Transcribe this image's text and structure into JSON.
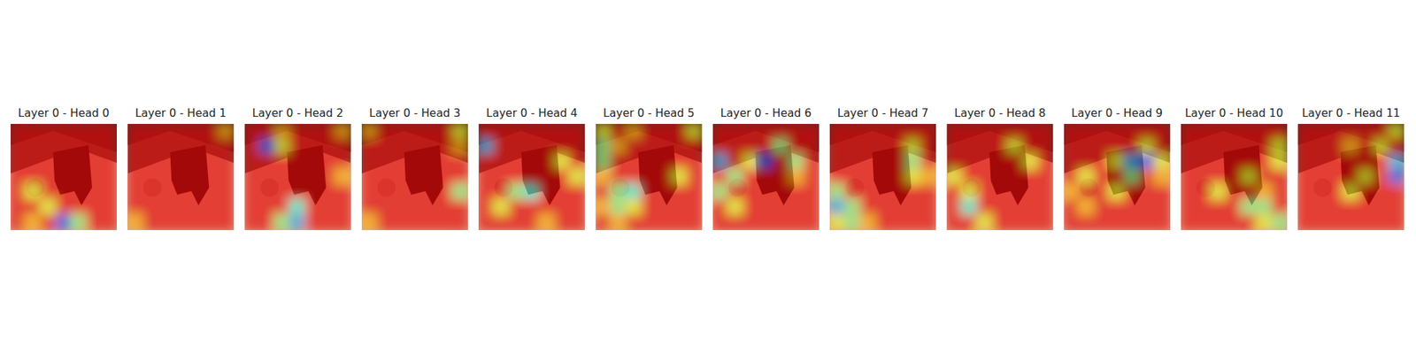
{
  "chart_data": [
    {
      "type": "heatmap",
      "title": "Layer 0 - Head 0",
      "zlim": [
        0,
        1
      ],
      "tick_labels": false,
      "z": [
        [
          0.9,
          0.9,
          0.9,
          0.9,
          0.9,
          0.9,
          0.9
        ],
        [
          0.9,
          0.9,
          0.9,
          0.9,
          0.9,
          0.9,
          0.9
        ],
        [
          0.9,
          0.9,
          0.9,
          0.9,
          0.9,
          0.9,
          0.9
        ],
        [
          0.9,
          0.9,
          0.9,
          0.9,
          0.9,
          0.9,
          0.9
        ],
        [
          0.9,
          0.6,
          0.9,
          0.9,
          0.9,
          0.9,
          0.9
        ],
        [
          0.9,
          0.9,
          0.6,
          0.9,
          0.9,
          0.9,
          0.9
        ],
        [
          0.9,
          0.7,
          0.9,
          0.2,
          0.5,
          0.9,
          0.9
        ]
      ]
    },
    {
      "type": "heatmap",
      "title": "Layer 0 - Head 1",
      "zlim": [
        0,
        1
      ],
      "tick_labels": false,
      "z": [
        [
          0.9,
          0.9,
          0.9,
          0.9,
          0.9,
          0.9,
          0.7
        ],
        [
          0.9,
          0.9,
          0.9,
          0.9,
          0.9,
          0.9,
          0.9
        ],
        [
          0.9,
          0.9,
          0.9,
          0.9,
          0.9,
          0.9,
          0.9
        ],
        [
          0.9,
          0.9,
          0.9,
          0.9,
          0.9,
          0.9,
          0.9
        ],
        [
          0.9,
          0.9,
          0.9,
          0.9,
          0.9,
          0.9,
          0.9
        ],
        [
          0.9,
          0.9,
          0.9,
          0.9,
          0.9,
          0.9,
          0.9
        ],
        [
          0.7,
          0.9,
          0.9,
          0.9,
          0.9,
          0.9,
          0.9
        ]
      ]
    },
    {
      "type": "heatmap",
      "title": "Layer 0 - Head 2",
      "zlim": [
        0,
        1
      ],
      "tick_labels": false,
      "z": [
        [
          0.9,
          0.9,
          0.7,
          0.9,
          0.9,
          0.9,
          0.7
        ],
        [
          0.9,
          0.2,
          0.6,
          0.9,
          0.9,
          0.9,
          0.9
        ],
        [
          0.9,
          0.9,
          0.9,
          0.9,
          0.9,
          0.9,
          0.9
        ],
        [
          0.9,
          0.9,
          0.9,
          0.9,
          0.9,
          0.9,
          0.7
        ],
        [
          0.9,
          0.9,
          0.9,
          0.9,
          0.9,
          0.9,
          0.9
        ],
        [
          0.9,
          0.9,
          0.9,
          0.4,
          0.9,
          0.9,
          0.9
        ],
        [
          0.9,
          0.9,
          0.5,
          0.3,
          0.9,
          0.9,
          0.9
        ]
      ]
    },
    {
      "type": "heatmap",
      "title": "Layer 0 - Head 3",
      "zlim": [
        0,
        1
      ],
      "tick_labels": false,
      "z": [
        [
          0.7,
          0.9,
          0.9,
          0.9,
          0.9,
          0.9,
          0.6
        ],
        [
          0.9,
          0.9,
          0.9,
          0.9,
          0.9,
          0.9,
          0.7
        ],
        [
          0.9,
          0.9,
          0.9,
          0.9,
          0.9,
          0.9,
          0.9
        ],
        [
          0.9,
          0.9,
          0.9,
          0.9,
          0.9,
          0.9,
          0.9
        ],
        [
          0.9,
          0.9,
          0.9,
          0.9,
          0.9,
          0.9,
          0.5
        ],
        [
          0.9,
          0.9,
          0.9,
          0.9,
          0.9,
          0.9,
          0.9
        ],
        [
          0.7,
          0.9,
          0.9,
          0.9,
          0.9,
          0.9,
          0.9
        ]
      ]
    },
    {
      "type": "heatmap",
      "title": "Layer 0 - Head 4",
      "zlim": [
        0,
        1
      ],
      "tick_labels": false,
      "z": [
        [
          0.9,
          0.9,
          0.9,
          0.9,
          0.9,
          0.9,
          0.9
        ],
        [
          0.3,
          0.9,
          0.9,
          0.9,
          0.9,
          0.9,
          0.9
        ],
        [
          0.9,
          0.9,
          0.9,
          0.9,
          0.9,
          0.6,
          0.9
        ],
        [
          0.9,
          0.9,
          0.9,
          0.9,
          0.9,
          0.9,
          0.6
        ],
        [
          0.9,
          0.9,
          0.5,
          0.4,
          0.9,
          0.9,
          0.9
        ],
        [
          0.9,
          0.6,
          0.9,
          0.9,
          0.9,
          0.9,
          0.9
        ],
        [
          0.9,
          0.9,
          0.9,
          0.9,
          0.7,
          0.9,
          0.9
        ]
      ]
    },
    {
      "type": "heatmap",
      "title": "Layer 0 - Head 5",
      "zlim": [
        0,
        1
      ],
      "tick_labels": false,
      "z": [
        [
          0.6,
          0.9,
          0.7,
          0.9,
          0.9,
          0.9,
          0.6
        ],
        [
          0.5,
          0.7,
          0.9,
          0.9,
          0.9,
          0.9,
          0.9
        ],
        [
          0.5,
          0.9,
          0.9,
          0.9,
          0.9,
          0.9,
          0.9
        ],
        [
          0.7,
          0.9,
          0.9,
          0.9,
          0.9,
          0.6,
          0.9
        ],
        [
          0.9,
          0.5,
          0.4,
          0.9,
          0.9,
          0.9,
          0.9
        ],
        [
          0.7,
          0.5,
          0.6,
          0.9,
          0.9,
          0.9,
          0.9
        ],
        [
          0.9,
          0.7,
          0.9,
          0.9,
          0.9,
          0.9,
          0.9
        ]
      ]
    },
    {
      "type": "heatmap",
      "title": "Layer 0 - Head 6",
      "zlim": [
        0,
        1
      ],
      "tick_labels": false,
      "z": [
        [
          0.9,
          0.9,
          0.9,
          0.9,
          0.9,
          0.9,
          0.9
        ],
        [
          0.9,
          0.9,
          0.9,
          0.9,
          0.5,
          0.9,
          0.9
        ],
        [
          0.3,
          0.9,
          0.6,
          0.2,
          0.9,
          0.5,
          0.9
        ],
        [
          0.9,
          0.5,
          0.9,
          0.9,
          0.9,
          0.7,
          0.9
        ],
        [
          0.5,
          0.9,
          0.9,
          0.9,
          0.9,
          0.9,
          0.9
        ],
        [
          0.9,
          0.6,
          0.9,
          0.9,
          0.9,
          0.9,
          0.9
        ],
        [
          0.9,
          0.9,
          0.9,
          0.9,
          0.9,
          0.9,
          0.9
        ]
      ]
    },
    {
      "type": "heatmap",
      "title": "Layer 0 - Head 7",
      "zlim": [
        0,
        1
      ],
      "tick_labels": false,
      "z": [
        [
          0.9,
          0.9,
          0.9,
          0.9,
          0.9,
          0.9,
          0.9
        ],
        [
          0.9,
          0.9,
          0.9,
          0.9,
          0.9,
          0.6,
          0.9
        ],
        [
          0.9,
          0.9,
          0.9,
          0.9,
          0.9,
          0.5,
          0.9
        ],
        [
          0.9,
          0.9,
          0.9,
          0.9,
          0.9,
          0.6,
          0.7
        ],
        [
          0.5,
          0.9,
          0.9,
          0.9,
          0.9,
          0.9,
          0.9
        ],
        [
          0.3,
          0.5,
          0.9,
          0.9,
          0.9,
          0.9,
          0.9
        ],
        [
          0.6,
          0.5,
          0.7,
          0.9,
          0.9,
          0.9,
          0.9
        ]
      ]
    },
    {
      "type": "heatmap",
      "title": "Layer 0 - Head 8",
      "zlim": [
        0,
        1
      ],
      "tick_labels": false,
      "z": [
        [
          0.9,
          0.9,
          0.9,
          0.9,
          0.9,
          0.9,
          0.9
        ],
        [
          0.9,
          0.9,
          0.9,
          0.9,
          0.6,
          0.9,
          0.9
        ],
        [
          0.9,
          0.9,
          0.9,
          0.9,
          0.9,
          0.6,
          0.9
        ],
        [
          0.6,
          0.9,
          0.9,
          0.9,
          0.9,
          0.9,
          0.9
        ],
        [
          0.9,
          0.6,
          0.9,
          0.9,
          0.9,
          0.9,
          0.9
        ],
        [
          0.9,
          0.4,
          0.9,
          0.9,
          0.9,
          0.9,
          0.9
        ],
        [
          0.9,
          0.9,
          0.6,
          0.9,
          0.9,
          0.9,
          0.9
        ]
      ]
    },
    {
      "type": "heatmap",
      "title": "Layer 0 - Head 9",
      "zlim": [
        0,
        1
      ],
      "tick_labels": false,
      "z": [
        [
          0.9,
          0.9,
          0.9,
          0.9,
          0.9,
          0.9,
          0.9
        ],
        [
          0.9,
          0.9,
          0.9,
          0.9,
          0.9,
          0.6,
          0.9
        ],
        [
          0.9,
          0.9,
          0.9,
          0.6,
          0.3,
          0.2,
          0.6
        ],
        [
          0.9,
          0.6,
          0.9,
          0.9,
          0.5,
          0.9,
          0.7
        ],
        [
          0.7,
          0.9,
          0.9,
          0.6,
          0.9,
          0.9,
          0.9
        ],
        [
          0.9,
          0.7,
          0.9,
          0.9,
          0.9,
          0.9,
          0.9
        ],
        [
          0.9,
          0.9,
          0.9,
          0.9,
          0.9,
          0.9,
          0.9
        ]
      ]
    },
    {
      "type": "heatmap",
      "title": "Layer 0 - Head 10",
      "zlim": [
        0,
        1
      ],
      "tick_labels": false,
      "z": [
        [
          0.9,
          0.9,
          0.9,
          0.9,
          0.9,
          0.9,
          0.9
        ],
        [
          0.9,
          0.9,
          0.9,
          0.9,
          0.9,
          0.9,
          0.6
        ],
        [
          0.9,
          0.9,
          0.9,
          0.9,
          0.9,
          0.9,
          0.6
        ],
        [
          0.9,
          0.9,
          0.9,
          0.9,
          0.6,
          0.9,
          0.9
        ],
        [
          0.9,
          0.9,
          0.6,
          0.9,
          0.9,
          0.7,
          0.9
        ],
        [
          0.9,
          0.9,
          0.9,
          0.9,
          0.5,
          0.5,
          0.9
        ],
        [
          0.9,
          0.9,
          0.9,
          0.9,
          0.9,
          0.6,
          0.5
        ]
      ]
    },
    {
      "type": "heatmap",
      "title": "Layer 0 - Head 11",
      "zlim": [
        0,
        1
      ],
      "tick_labels": false,
      "z": [
        [
          0.9,
          0.9,
          0.9,
          0.9,
          0.9,
          0.9,
          0.6
        ],
        [
          0.9,
          0.9,
          0.9,
          0.7,
          0.9,
          0.6,
          0.9
        ],
        [
          0.9,
          0.9,
          0.9,
          0.9,
          0.9,
          0.9,
          0.3
        ],
        [
          0.9,
          0.9,
          0.9,
          0.9,
          0.6,
          0.9,
          0.2
        ],
        [
          0.9,
          0.9,
          0.9,
          0.6,
          0.9,
          0.9,
          0.9
        ],
        [
          0.9,
          0.9,
          0.9,
          0.9,
          0.9,
          0.9,
          0.9
        ],
        [
          0.9,
          0.9,
          0.9,
          0.9,
          0.9,
          0.9,
          0.9
        ]
      ]
    }
  ]
}
